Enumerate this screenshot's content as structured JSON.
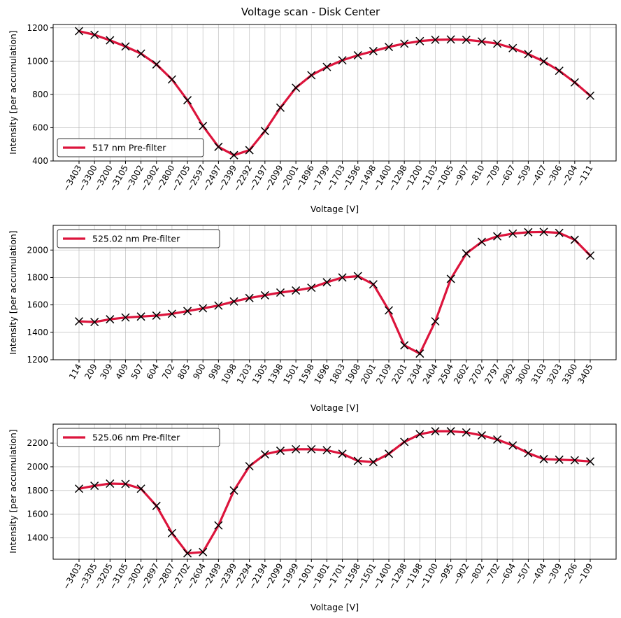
{
  "figure": {
    "title": "Voltage scan - Disk Center"
  },
  "chart_data": [
    {
      "type": "line",
      "title": "",
      "xlabel": "Voltage [V]",
      "ylabel": "Intensity [per accumulation]",
      "ylim": [
        400,
        1220
      ],
      "yticks": [
        400,
        600,
        800,
        1000,
        1200
      ],
      "grid": true,
      "legend_position": "lower-left",
      "x": [
        "−3403",
        "−3300",
        "−3200",
        "−3105",
        "−3002",
        "−2902",
        "−2800",
        "−2705",
        "−2597",
        "−2497",
        "−2399",
        "−2292",
        "−2197",
        "−2099",
        "−2001",
        "−1896",
        "−1799",
        "−1703",
        "−1596",
        "−1498",
        "−1400",
        "−1298",
        "−1200",
        "−1103",
        "−1005",
        "−907",
        "−810",
        "−709",
        "−607",
        "−509",
        "−407",
        "−306",
        "−204",
        "−111"
      ],
      "series": [
        {
          "name": "517 nm Pre-filter",
          "color": "#dc143c",
          "marker": "x",
          "values": [
            1180,
            1158,
            1125,
            1088,
            1045,
            980,
            890,
            765,
            610,
            485,
            435,
            465,
            580,
            720,
            840,
            915,
            965,
            1005,
            1035,
            1060,
            1085,
            1105,
            1120,
            1128,
            1130,
            1128,
            1118,
            1105,
            1078,
            1042,
            998,
            942,
            872,
            792
          ]
        }
      ]
    },
    {
      "type": "line",
      "title": "",
      "xlabel": "Voltage [V]",
      "ylabel": "Intensity [per accumulation]",
      "ylim": [
        1200,
        2180
      ],
      "yticks": [
        1200,
        1400,
        1600,
        1800,
        2000
      ],
      "grid": true,
      "legend_position": "upper-left",
      "x": [
        "114",
        "209",
        "309",
        "409",
        "507",
        "604",
        "702",
        "805",
        "900",
        "998",
        "1098",
        "1203",
        "1305",
        "1398",
        "1501",
        "1598",
        "1696",
        "1803",
        "1908",
        "2001",
        "2109",
        "2201",
        "2304",
        "2404",
        "2504",
        "2602",
        "2702",
        "2797",
        "2902",
        "3000",
        "3103",
        "3203",
        "3300",
        "3405"
      ],
      "series": [
        {
          "name": "525.02 nm Pre-filter",
          "color": "#dc143c",
          "marker": "x",
          "values": [
            1480,
            1475,
            1495,
            1508,
            1515,
            1522,
            1535,
            1555,
            1575,
            1595,
            1625,
            1650,
            1670,
            1690,
            1705,
            1725,
            1765,
            1800,
            1810,
            1750,
            1560,
            1305,
            1245,
            1480,
            1790,
            1975,
            2060,
            2100,
            2120,
            2130,
            2132,
            2125,
            2075,
            1960
          ]
        }
      ]
    },
    {
      "type": "line",
      "title": "",
      "xlabel": "Voltage [V]",
      "ylabel": "Intensity [per accumulation]",
      "ylim": [
        1220,
        2360
      ],
      "yticks": [
        1400,
        1600,
        1800,
        2000,
        2200
      ],
      "grid": true,
      "legend_position": "upper-left",
      "x": [
        "−3403",
        "−3305",
        "−3205",
        "−3105",
        "−3002",
        "−2897",
        "−2807",
        "−2702",
        "−2604",
        "−2499",
        "−2399",
        "−2294",
        "−2194",
        "−2099",
        "−1999",
        "−1901",
        "−1801",
        "−1701",
        "−1598",
        "−1501",
        "−1400",
        "−1298",
        "−1198",
        "−1100",
        "−995",
        "−902",
        "−802",
        "−702",
        "−604",
        "−507",
        "−404",
        "−309",
        "−206",
        "−109"
      ],
      "series": [
        {
          "name": "525.06 nm Pre-filter",
          "color": "#dc143c",
          "marker": "x",
          "values": [
            1815,
            1840,
            1858,
            1855,
            1815,
            1670,
            1440,
            1270,
            1280,
            1505,
            1800,
            2005,
            2105,
            2135,
            2148,
            2148,
            2140,
            2110,
            2050,
            2040,
            2110,
            2210,
            2275,
            2300,
            2300,
            2290,
            2265,
            2230,
            2180,
            2115,
            2065,
            2060,
            2055,
            2045
          ]
        }
      ]
    }
  ]
}
